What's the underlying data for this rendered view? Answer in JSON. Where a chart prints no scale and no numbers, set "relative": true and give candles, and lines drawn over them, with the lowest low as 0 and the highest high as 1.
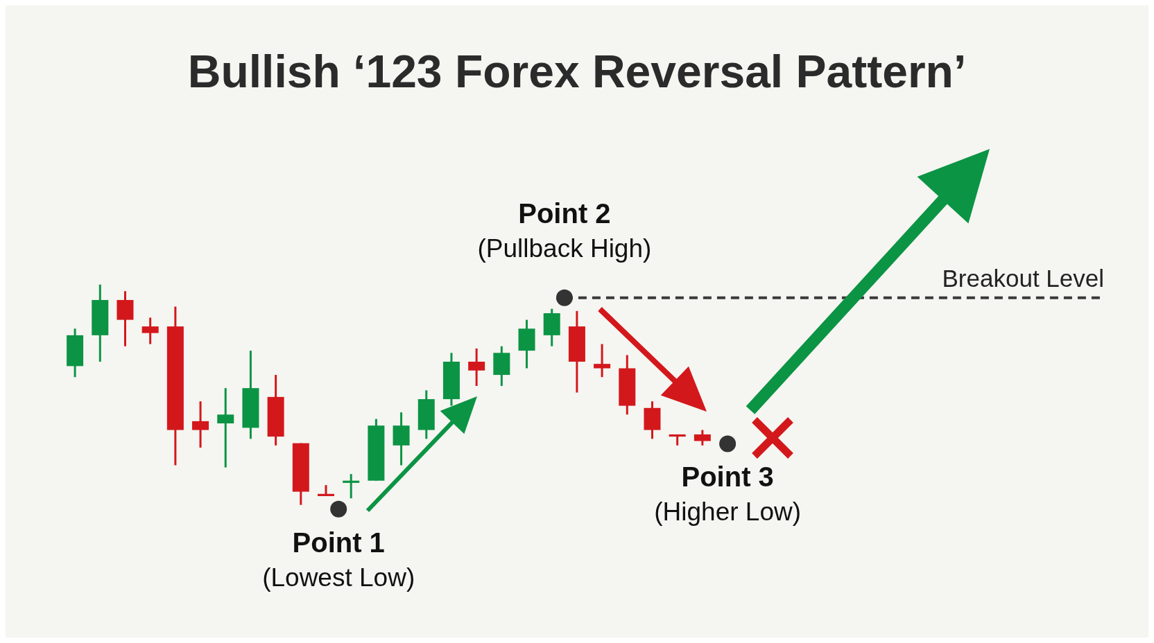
{
  "chart_data": {
    "type": "candlestick",
    "title": "Bullish ‘123 Forex Reversal Pattern’",
    "relative": true,
    "categories": [
      null,
      null,
      null,
      null,
      null,
      null,
      null,
      null,
      null,
      null,
      null,
      null,
      null,
      null,
      null,
      null,
      null,
      null,
      null,
      null,
      null,
      null,
      null,
      null,
      null,
      null
    ],
    "ohlc": [
      [
        0.63,
        0.8,
        0.58,
        0.77
      ],
      [
        0.77,
        1.0,
        0.65,
        0.93
      ],
      [
        0.93,
        0.97,
        0.72,
        0.84
      ],
      [
        0.81,
        0.85,
        0.73,
        0.78
      ],
      [
        0.81,
        0.9,
        0.18,
        0.34
      ],
      [
        0.38,
        0.47,
        0.26,
        0.34
      ],
      [
        0.37,
        0.53,
        0.17,
        0.41
      ],
      [
        0.35,
        0.7,
        0.3,
        0.53
      ],
      [
        0.49,
        0.59,
        0.27,
        0.31
      ],
      [
        0.28,
        0.28,
        0.0,
        0.06
      ],
      [
        0.05,
        0.09,
        0.04,
        0.04
      ],
      [
        0.1,
        0.14,
        0.03,
        0.11
      ],
      [
        0.11,
        0.39,
        0.11,
        0.36
      ],
      [
        0.27,
        0.42,
        0.18,
        0.36
      ],
      [
        0.34,
        0.52,
        0.3,
        0.48
      ],
      [
        0.48,
        0.69,
        0.45,
        0.65
      ],
      [
        0.65,
        0.71,
        0.54,
        0.61
      ],
      [
        0.59,
        0.72,
        0.54,
        0.69
      ],
      [
        0.7,
        0.84,
        0.62,
        0.8
      ],
      [
        0.77,
        0.89,
        0.72,
        0.87
      ],
      [
        0.81,
        0.88,
        0.51,
        0.65
      ],
      [
        0.64,
        0.73,
        0.58,
        0.62
      ],
      [
        0.62,
        0.68,
        0.41,
        0.45
      ],
      [
        0.44,
        0.47,
        0.3,
        0.34
      ],
      [
        0.32,
        0.32,
        0.27,
        0.31
      ],
      [
        0.32,
        0.34,
        0.27,
        0.29
      ]
    ],
    "colors": [
      "#0b9444",
      "#0b9444",
      "#d3181c",
      "#d3181c",
      "#d3181c",
      "#d3181c",
      "#0b9444",
      "#0b9444",
      "#d3181c",
      "#d3181c",
      "#d3181c",
      "#0b9444",
      "#0b9444",
      "#0b9444",
      "#0b9444",
      "#0b9444",
      "#d3181c",
      "#0b9444",
      "#0b9444",
      "#0b9444",
      "#d3181c",
      "#d3181c",
      "#d3181c",
      "#d3181c",
      "#d3181c",
      "#d3181c"
    ],
    "ref_lines": [
      {
        "axis": "y",
        "value": 0.94,
        "label": "Breakout Level",
        "line_style": "dashed",
        "color": "#3a3a3a"
      }
    ],
    "annotations": [
      "Point 1\n(Lowest Low)",
      "Point 2\n(Pullback High)",
      "Point 3\n(Higher Low)"
    ]
  }
}
